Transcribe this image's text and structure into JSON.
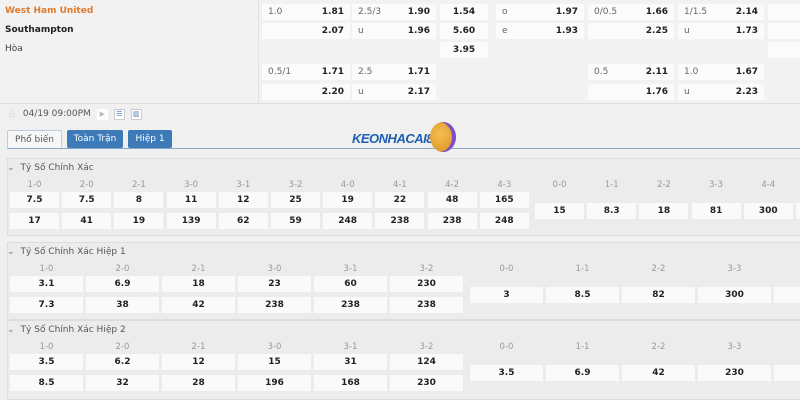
{
  "match": {
    "home": "West Ham United",
    "away": "Southampton",
    "draw": "Hòa",
    "home_color": "#e07a2a"
  },
  "odds_rows": [
    [
      [
        "1.0",
        "1.81"
      ],
      [
        "2.5/3",
        "1.90"
      ],
      [
        "",
        "1.54"
      ],
      [
        "o",
        "1.97"
      ],
      [
        "0/0.5",
        "1.66"
      ],
      [
        "1/1.5",
        "2.14"
      ]
    ],
    [
      [
        "",
        "2.07"
      ],
      [
        "u",
        "1.96"
      ],
      [
        "",
        "5.60"
      ],
      [
        "e",
        "1.93"
      ],
      [
        "",
        "2.25"
      ],
      [
        "u",
        "1.73"
      ]
    ],
    [
      null,
      null,
      [
        "",
        "3.95"
      ],
      null,
      null,
      null
    ],
    [
      [
        "0.5/1",
        "1.71"
      ],
      [
        "2.5",
        "1.71"
      ],
      null,
      null,
      [
        "0.5",
        "2.11"
      ],
      [
        "1.0",
        "1.67"
      ]
    ],
    [
      [
        "",
        "2.20"
      ],
      [
        "u",
        "2.17"
      ],
      null,
      null,
      [
        "",
        "1.76"
      ],
      [
        "u",
        "2.23"
      ]
    ]
  ],
  "toolbar": {
    "datetime": "04/19 09:00PM",
    "icons": [
      "star-icon",
      "play-icon",
      "list-icon",
      "stats-icon"
    ]
  },
  "tabs": [
    "Phổ biến",
    "Toàn Trận",
    "Hiệp 1"
  ],
  "logo_text": "KEONHACAI88",
  "sections": [
    {
      "title": "Tỷ Số Chính Xác",
      "scores": [
        "1-0",
        "2-0",
        "2-1",
        "3-0",
        "3-1",
        "3-2",
        "4-0",
        "4-1",
        "4-2",
        "4-3"
      ],
      "home": [
        "7.5",
        "7.5",
        "8",
        "11",
        "12",
        "25",
        "19",
        "22",
        "48",
        "165"
      ],
      "away": [
        "17",
        "41",
        "19",
        "139",
        "62",
        "59",
        "248",
        "238",
        "238",
        "248"
      ],
      "draw_scores": [
        "0-0",
        "1-1",
        "2-2",
        "3-3",
        "4-4"
      ],
      "draw": [
        "15",
        "8.3",
        "18",
        "81",
        "300"
      ]
    },
    {
      "title": "Tỷ Số Chính Xác Hiệp 1",
      "scores": [
        "1-0",
        "2-0",
        "2-1",
        "3-0",
        "3-1",
        "3-2"
      ],
      "home": [
        "3.1",
        "6.9",
        "18",
        "23",
        "60",
        "230"
      ],
      "away": [
        "7.3",
        "38",
        "42",
        "238",
        "238",
        "238"
      ],
      "draw_scores": [
        "0-0",
        "1-1",
        "2-2",
        "3-3"
      ],
      "draw": [
        "3",
        "8.5",
        "82",
        "300"
      ]
    },
    {
      "title": "Tỷ Số Chính Xác Hiệp 2",
      "scores": [
        "1-0",
        "2-0",
        "2-1",
        "3-0",
        "3-1",
        "3-2"
      ],
      "home": [
        "3.5",
        "6.2",
        "12",
        "15",
        "31",
        "124"
      ],
      "away": [
        "8.5",
        "32",
        "28",
        "196",
        "168",
        "230"
      ],
      "draw_scores": [
        "0-0",
        "1-1",
        "2-2",
        "3-3"
      ],
      "draw": [
        "3.5",
        "6.9",
        "42",
        "230"
      ]
    }
  ]
}
